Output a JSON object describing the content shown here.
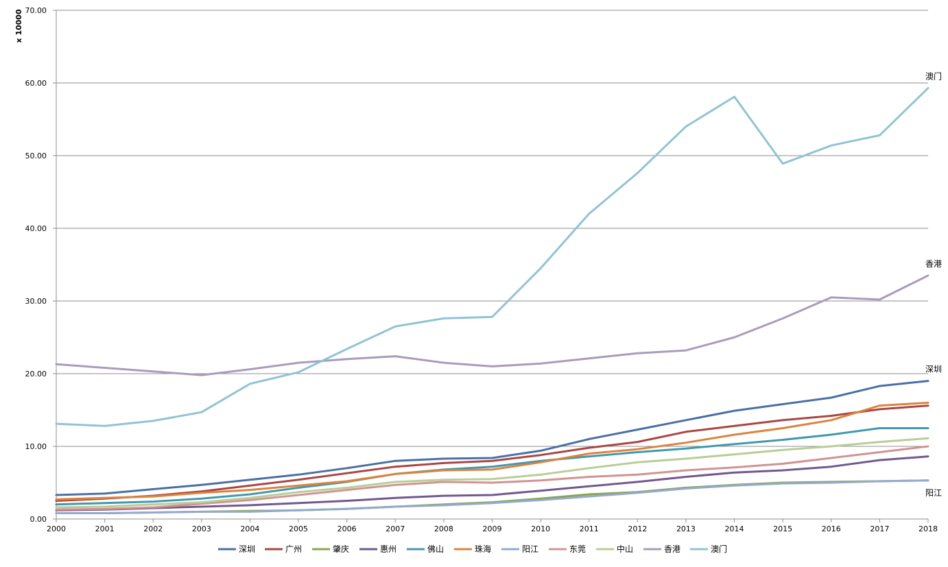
{
  "chart_data": {
    "type": "line",
    "unit_label": "x 10000",
    "x": [
      "2000",
      "2001",
      "2002",
      "2003",
      "2004",
      "2005",
      "2006",
      "2007",
      "2008",
      "2009",
      "2010",
      "2011",
      "2012",
      "2013",
      "2014",
      "2015",
      "2016",
      "2017",
      "2018"
    ],
    "ylim": [
      0,
      70
    ],
    "yticks": [
      "0.00",
      "10.00",
      "20.00",
      "30.00",
      "40.00",
      "50.00",
      "60.00",
      "70.00"
    ],
    "grid": true,
    "legend_position": "bottom",
    "series": [
      {
        "name": "深圳",
        "color": "#4a6fa5",
        "values": [
          3.3,
          3.5,
          4.1,
          4.7,
          5.4,
          6.1,
          7.0,
          8.0,
          8.3,
          8.4,
          9.4,
          11.0,
          12.3,
          13.6,
          14.9,
          15.8,
          16.7,
          18.3,
          19.0
        ]
      },
      {
        "name": "广州",
        "color": "#aa4643",
        "values": [
          2.5,
          2.8,
          3.2,
          3.8,
          4.6,
          5.4,
          6.3,
          7.2,
          7.7,
          8.0,
          8.8,
          9.8,
          10.6,
          12.0,
          12.8,
          13.6,
          14.2,
          15.1,
          15.6
        ]
      },
      {
        "name": "肇庆",
        "color": "#89a54e",
        "values": [
          0.8,
          0.8,
          0.9,
          1.0,
          1.1,
          1.2,
          1.4,
          1.7,
          2.0,
          2.3,
          2.8,
          3.4,
          3.7,
          4.3,
          4.7,
          5.0,
          5.1,
          5.2,
          5.3
        ]
      },
      {
        "name": "惠州",
        "color": "#71588f",
        "values": [
          1.2,
          1.3,
          1.5,
          1.7,
          1.9,
          2.2,
          2.5,
          2.9,
          3.2,
          3.3,
          3.9,
          4.5,
          5.1,
          5.8,
          6.4,
          6.7,
          7.2,
          8.1,
          8.6
        ]
      },
      {
        "name": "佛山",
        "color": "#4198af",
        "values": [
          2.0,
          2.2,
          2.4,
          2.8,
          3.4,
          4.3,
          5.1,
          6.2,
          6.8,
          7.2,
          8.0,
          8.6,
          9.2,
          9.7,
          10.3,
          10.9,
          11.6,
          12.5,
          12.5
        ]
      },
      {
        "name": "珠海",
        "color": "#db843d",
        "values": [
          2.7,
          2.9,
          3.1,
          3.6,
          4.0,
          4.6,
          5.2,
          6.2,
          6.7,
          6.8,
          7.8,
          9.0,
          9.6,
          10.5,
          11.6,
          12.5,
          13.6,
          15.6,
          16.0
        ]
      },
      {
        "name": "阳江",
        "color": "#93a9cf",
        "values": [
          0.8,
          0.8,
          0.9,
          1.0,
          1.0,
          1.2,
          1.4,
          1.7,
          1.9,
          2.2,
          2.6,
          3.1,
          3.6,
          4.2,
          4.6,
          4.9,
          5.0,
          5.2,
          5.3
        ]
      },
      {
        "name": "东莞",
        "color": "#d19392",
        "values": [
          1.3,
          1.4,
          1.6,
          2.1,
          2.6,
          3.3,
          4.0,
          4.7,
          5.1,
          5.0,
          5.3,
          5.8,
          6.1,
          6.7,
          7.1,
          7.6,
          8.4,
          9.2,
          10.0
        ]
      },
      {
        "name": "中山",
        "color": "#b9cd96",
        "values": [
          1.6,
          1.7,
          2.0,
          2.3,
          2.9,
          3.7,
          4.3,
          5.1,
          5.4,
          5.5,
          6.1,
          7.0,
          7.8,
          8.3,
          8.9,
          9.5,
          10.0,
          10.6,
          11.1
        ]
      },
      {
        "name": "香港",
        "color": "#a99bbd",
        "values": [
          21.3,
          20.8,
          20.3,
          19.8,
          20.6,
          21.5,
          22.0,
          22.4,
          21.5,
          21.0,
          21.4,
          22.1,
          22.8,
          23.2,
          25.0,
          27.6,
          30.5,
          30.2,
          33.5
        ]
      },
      {
        "name": "澳门",
        "color": "#91c3d5",
        "values": [
          13.1,
          12.8,
          13.5,
          14.7,
          18.6,
          20.2,
          23.4,
          26.5,
          27.6,
          27.8,
          34.5,
          42.0,
          47.6,
          54.0,
          58.1,
          48.9,
          51.4,
          52.8,
          59.3
        ]
      }
    ],
    "end_labels": [
      {
        "text": "澳门",
        "series": "澳门"
      },
      {
        "text": "香港",
        "series": "香港"
      },
      {
        "text": "深圳",
        "series": "深圳"
      },
      {
        "text": "阳江",
        "series": "阳江"
      }
    ]
  }
}
